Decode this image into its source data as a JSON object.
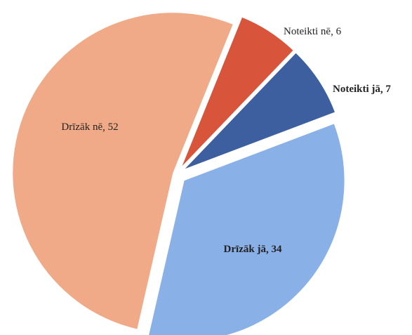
{
  "chart_data": {
    "type": "pie",
    "categories": [
      "Noteikti nē",
      "Noteikti jā",
      "Drīzāk jā",
      "Drīzāk nē"
    ],
    "values": [
      6,
      7,
      34,
      52
    ],
    "colors": [
      "#d8553c",
      "#3d5f9f",
      "#8ab0e8",
      "#f1aa88"
    ]
  }
}
